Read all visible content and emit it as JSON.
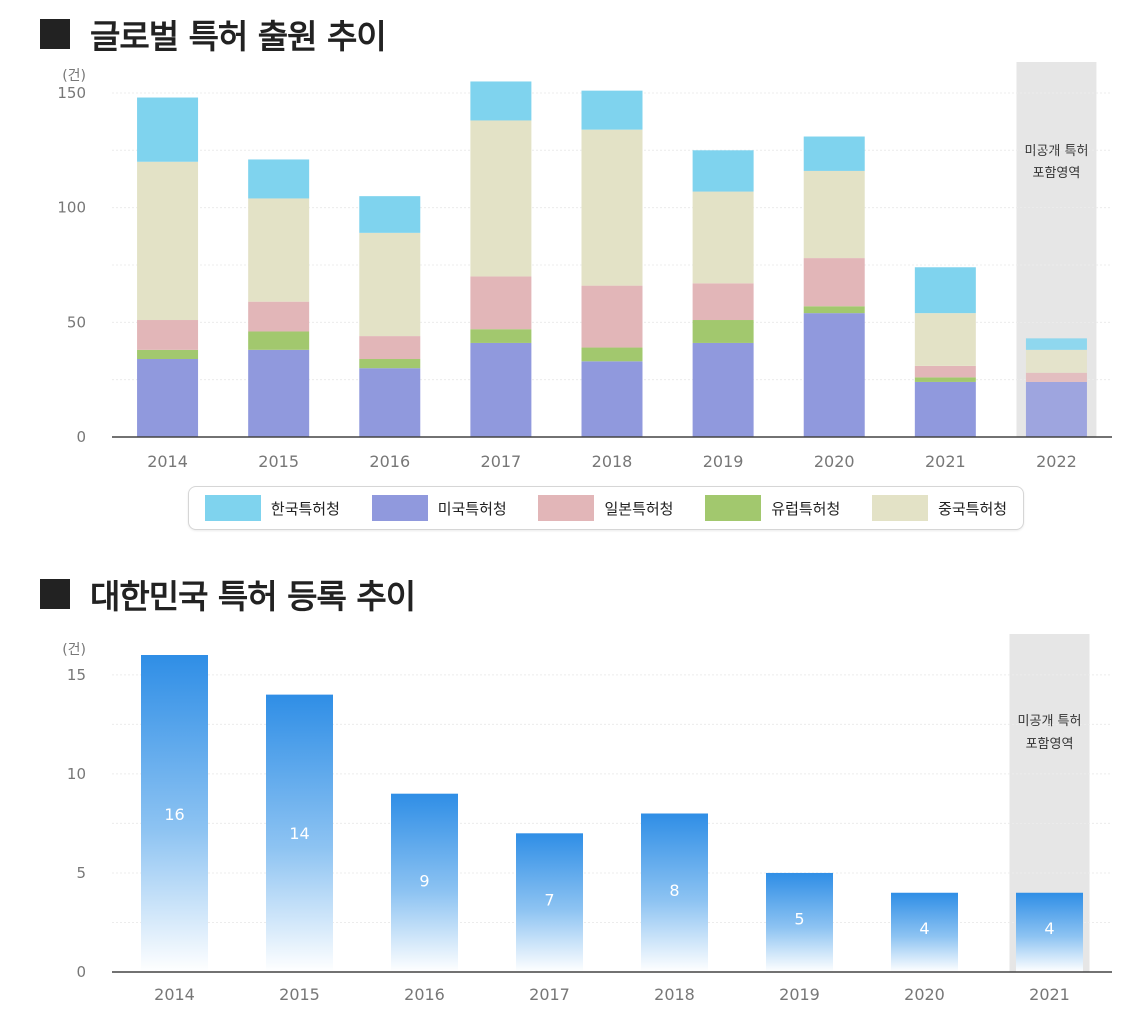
{
  "section1": {
    "title": "글로벌 특허 출원 추이"
  },
  "section2": {
    "title": "대한민국 특허 등록 추이"
  },
  "legend": [
    {
      "label": "한국특허청",
      "color": "#7fd3ee"
    },
    {
      "label": "미국특허청",
      "color": "#9099dd"
    },
    {
      "label": "일본특허청",
      "color": "#e2b6b8"
    },
    {
      "label": "유럽특허청",
      "color": "#a2c86e"
    },
    {
      "label": "중국특허청",
      "color": "#e3e2c6"
    }
  ],
  "chart_data": [
    {
      "type": "bar",
      "stacked": true,
      "title": "글로벌 특허 출원 추이",
      "unit_label": "(건)",
      "categories": [
        "2014",
        "2015",
        "2016",
        "2017",
        "2018",
        "2019",
        "2020",
        "2021",
        "2022"
      ],
      "ylim": [
        0,
        160
      ],
      "yticks": [
        0,
        50,
        100,
        150
      ],
      "series": [
        {
          "name": "미국특허청",
          "color": "#9099dd",
          "values": [
            34,
            38,
            30,
            41,
            33,
            41,
            54,
            24,
            24
          ]
        },
        {
          "name": "유럽특허청",
          "color": "#a2c86e",
          "values": [
            4,
            8,
            4,
            6,
            6,
            10,
            3,
            2,
            0
          ]
        },
        {
          "name": "일본특허청",
          "color": "#e2b6b8",
          "values": [
            13,
            13,
            10,
            23,
            27,
            16,
            21,
            5,
            4
          ]
        },
        {
          "name": "중국특허청",
          "color": "#e3e2c6",
          "values": [
            69,
            45,
            45,
            68,
            68,
            40,
            38,
            23,
            10
          ]
        },
        {
          "name": "한국특허청",
          "color": "#7fd3ee",
          "values": [
            28,
            17,
            16,
            17,
            17,
            18,
            15,
            20,
            5
          ]
        }
      ],
      "highlight": {
        "category": "2022",
        "label_line1": "미공개 특허",
        "label_line2": "포함영역"
      }
    },
    {
      "type": "bar",
      "title": "대한민국 특허 등록 추이",
      "unit_label": "(건)",
      "categories": [
        "2014",
        "2015",
        "2016",
        "2017",
        "2018",
        "2019",
        "2020",
        "2021"
      ],
      "values": [
        16,
        14,
        9,
        7,
        8,
        5,
        4,
        4
      ],
      "ylim": [
        0,
        16
      ],
      "yticks": [
        0,
        5,
        10,
        15
      ],
      "highlight": {
        "category": "2021",
        "label_line1": "미공개 특허",
        "label_line2": "포함영역"
      }
    }
  ]
}
